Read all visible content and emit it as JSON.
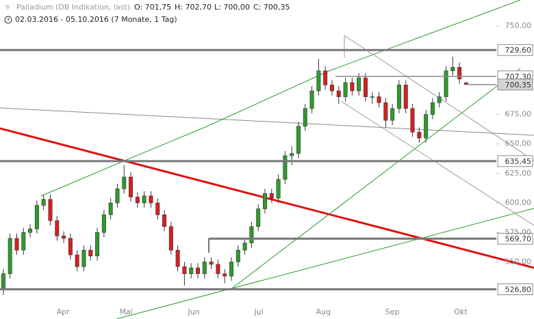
{
  "chart_data": {
    "type": "candlestick",
    "title": "Palladium (DB Indikation, last)",
    "ohlc_info": [
      "O: 701,75",
      "H: 702,70",
      "L: 700,00",
      "C: 700,35"
    ],
    "subtitle": "02.03.2016 - 05.10.2016 (7 Monate, 1 Tag)",
    "open": [
      528,
      540,
      570,
      560,
      575,
      578,
      598,
      603,
      585,
      572,
      570,
      556,
      546,
      560,
      555,
      575,
      590,
      600,
      612,
      622,
      605,
      600,
      606,
      600,
      590,
      580,
      560,
      546,
      540,
      545,
      540,
      550,
      548,
      540,
      538,
      550,
      560,
      566,
      580,
      595,
      608,
      604,
      620,
      640,
      642,
      665,
      680,
      695,
      712,
      700,
      695,
      690,
      702,
      695,
      706,
      690,
      690,
      685,
      670,
      680,
      700,
      680,
      660,
      655,
      675,
      685,
      690,
      712,
      715,
      701.75
    ],
    "high": [
      544,
      574,
      574,
      579,
      582,
      602,
      607,
      607,
      589,
      576,
      574,
      560,
      564,
      564,
      579,
      594,
      604,
      616,
      632,
      626,
      609,
      610,
      610,
      604,
      594,
      584,
      564,
      550,
      549,
      549,
      554,
      554,
      552,
      544,
      554,
      564,
      570,
      584,
      599,
      612,
      612,
      624,
      644,
      648,
      669,
      684,
      699,
      722,
      716,
      704,
      699,
      706,
      706,
      710,
      710,
      694,
      694,
      689,
      684,
      704,
      704,
      684,
      664,
      679,
      689,
      694,
      716,
      724,
      719,
      702.7
    ],
    "low": [
      522,
      536,
      556,
      556,
      571,
      574,
      594,
      581,
      568,
      566,
      552,
      542,
      542,
      551,
      551,
      571,
      586,
      596,
      608,
      601,
      596,
      596,
      596,
      586,
      576,
      556,
      542,
      530,
      536,
      536,
      536,
      544,
      536,
      532,
      534,
      546,
      556,
      562,
      576,
      591,
      600,
      600,
      616,
      632,
      638,
      661,
      676,
      691,
      696,
      691,
      684,
      686,
      691,
      691,
      686,
      684,
      681,
      664,
      666,
      676,
      676,
      656,
      651,
      651,
      671,
      681,
      686,
      708,
      701,
      700
    ],
    "close": [
      540,
      570,
      560,
      575,
      578,
      598,
      603,
      585,
      572,
      570,
      556,
      546,
      560,
      555,
      575,
      590,
      600,
      612,
      622,
      605,
      600,
      606,
      600,
      590,
      580,
      560,
      546,
      540,
      545,
      540,
      550,
      548,
      540,
      538,
      550,
      560,
      566,
      580,
      595,
      608,
      604,
      620,
      640,
      642,
      665,
      680,
      695,
      712,
      700,
      695,
      690,
      702,
      695,
      706,
      690,
      690,
      685,
      670,
      680,
      700,
      680,
      660,
      655,
      675,
      685,
      690,
      712,
      715,
      705,
      700.35
    ],
    "up_color": "#2e9a2e",
    "down_color": "#d62020",
    "xlim": [
      -0.5,
      73.5
    ],
    "xticks": [
      {
        "value": 8.9,
        "label": "Apr"
      },
      {
        "value": 18.3,
        "label": "Mai"
      },
      {
        "value": 28.4,
        "label": "Jun"
      },
      {
        "value": 38.1,
        "label": "Jul"
      },
      {
        "value": 47.7,
        "label": "Aug"
      },
      {
        "value": 58.0,
        "label": "Sep"
      },
      {
        "value": 68.2,
        "label": "Okt"
      }
    ],
    "ylim": [
      508,
      772
    ],
    "yticks": [
      {
        "value": 750,
        "label": "750,00"
      },
      {
        "value": 675,
        "label": "675,00"
      },
      {
        "value": 650,
        "label": "650,00"
      },
      {
        "value": 625,
        "label": "625,00"
      },
      {
        "value": 600,
        "label": "600,00"
      },
      {
        "value": 575,
        "label": "575,00"
      },
      {
        "value": 550,
        "label": "550,00"
      }
    ],
    "levels": [
      {
        "value": 729.6,
        "label": "729,60"
      },
      {
        "value": 707.3,
        "label": "707,30"
      },
      {
        "value": 700.35,
        "label": "700,35"
      },
      {
        "value": 635.45,
        "label": "635,45"
      },
      {
        "value": 569.7,
        "label": "569,70"
      },
      {
        "value": 526.8,
        "label": "526,80"
      }
    ]
  }
}
